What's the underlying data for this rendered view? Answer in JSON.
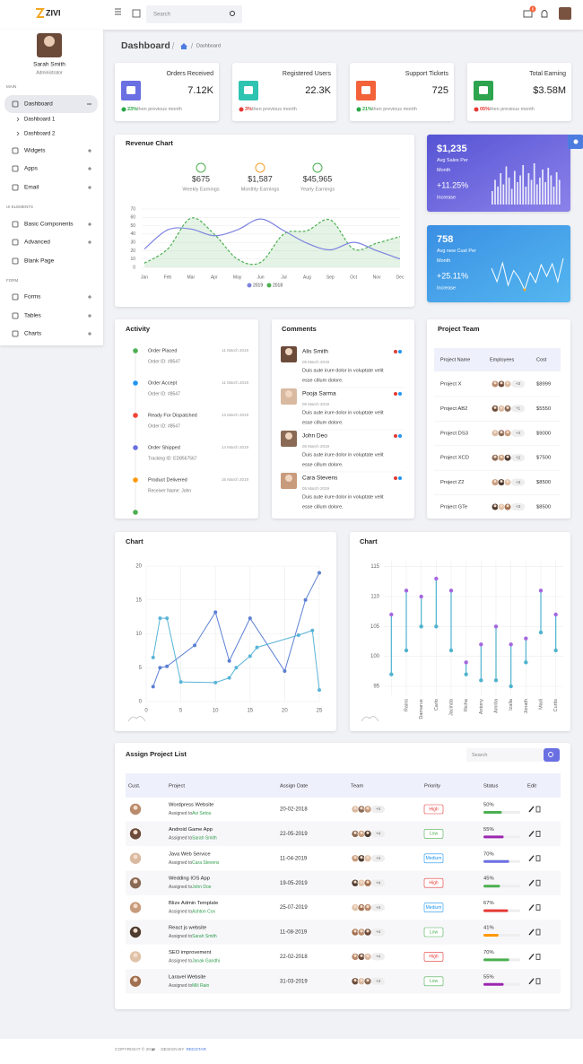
{
  "header": {
    "brand": "ZIVI",
    "search_placeholder": "Search",
    "mail_badge": "6"
  },
  "sidebar": {
    "user_name": "Sarah Smith",
    "user_role": "Administrator",
    "sections": [
      {
        "label": "MAIN",
        "items": [
          {
            "label": "Dashboard",
            "children": [
              "Dashboard 1",
              "Dashboard 2"
            ]
          },
          {
            "label": "Widgets"
          },
          {
            "label": "Apps"
          },
          {
            "label": "Email"
          }
        ]
      },
      {
        "label": "UI ELEMENTS",
        "items": [
          {
            "label": "Basic Components"
          },
          {
            "label": "Advanced"
          },
          {
            "label": "Blank Page"
          }
        ]
      },
      {
        "label": "FORM",
        "items": [
          {
            "label": "Forms"
          },
          {
            "label": "Tables"
          },
          {
            "label": "Charts"
          }
        ]
      }
    ]
  },
  "page_title": "Dashboard",
  "breadcrumb": [
    "Dashboard"
  ],
  "stats": [
    {
      "title": "Orders Received",
      "value": "7.12K",
      "change": "23%",
      "note": "then previous month",
      "trend_color": "#28a745",
      "color": "#6a6fe2"
    },
    {
      "title": "Registered Users",
      "value": "22.3K",
      "change": "3%",
      "note": "then previous month",
      "trend_color": "#e53935",
      "color": "#2fc3b2"
    },
    {
      "title": "Support Tickets",
      "value": "725",
      "change": "21%",
      "note": "then previous month",
      "trend_color": "#28a745",
      "color": "#f4623a"
    },
    {
      "title": "Total Earning",
      "value": "$3.58M",
      "change": "05%",
      "note": "then previous month",
      "trend_color": "#e53935",
      "color": "#2ea44f"
    }
  ],
  "revenue_chart": {
    "type": "line",
    "title": "Revenue Chart",
    "summary": [
      {
        "value": "$675",
        "label": "Weekly Earnings",
        "color": "#4caf50"
      },
      {
        "value": "$1,587",
        "label": "Monthly Earnings",
        "color": "#f0a030"
      },
      {
        "value": "$45,965",
        "label": "Yearly Earnings",
        "color": "#4caf50"
      }
    ],
    "categories": [
      "Jan",
      "Feb",
      "Mar",
      "Apr",
      "May",
      "Jun",
      "Jul",
      "Aug",
      "Sep",
      "Oct",
      "Nov",
      "Dec"
    ],
    "series": [
      {
        "name": "2019",
        "color": "#7c83e0",
        "values": [
          22,
          45,
          46,
          38,
          45,
          58,
          44,
          29,
          21,
          30,
          20,
          10
        ]
      },
      {
        "name": "2018",
        "color": "#4caf50",
        "dashed": true,
        "fill": true,
        "values": [
          5,
          22,
          59,
          40,
          10,
          6,
          40,
          44,
          57,
          22,
          29,
          37
        ]
      }
    ],
    "ylim": [
      0,
      70
    ],
    "yticks": [
      0,
      10,
      20,
      30,
      40,
      50,
      60,
      70
    ],
    "grid": true
  },
  "sales_cards": [
    {
      "value": "$1,235",
      "label": "Avg Sales Per Month",
      "change": "+11.25%",
      "change_note": "Increase",
      "spark": {
        "type": "bar",
        "color": "#ffffff",
        "ylim": [
          0,
          100
        ],
        "values": [
          30,
          55,
          40,
          70,
          45,
          85,
          60,
          35,
          75,
          50,
          65,
          88,
          40,
          70,
          55,
          92,
          45,
          60,
          78,
          50,
          82,
          65,
          40,
          72,
          55
        ]
      }
    },
    {
      "value": "758",
      "label": "Avg new Cust Per Month",
      "change": "+25.11%",
      "change_note": "Increase",
      "spark": {
        "type": "line",
        "color": "#ffffff",
        "ylim": [
          0,
          100
        ],
        "values": [
          60,
          30,
          72,
          22,
          55,
          38,
          12,
          50,
          28,
          68,
          42,
          70,
          30,
          82
        ]
      }
    }
  ],
  "activity": {
    "title": "Activity",
    "items": [
      {
        "title": "Order Placed",
        "detail": "Order ID: #8547",
        "date": "11 March 2019",
        "color": "#4caf50"
      },
      {
        "title": "Order Accept",
        "detail": "Order ID: #8547",
        "date": "11 March 2019",
        "color": "#2196f3"
      },
      {
        "title": "Ready For Dispatched",
        "detail": "Order ID: #8547",
        "date": "13 March 2019",
        "color": "#f44336"
      },
      {
        "title": "Order Shipped",
        "detail": "Tracking ID: ED8567567",
        "date": "14 March 2019",
        "color": "#6a6fe2"
      },
      {
        "title": "Product Delivered",
        "detail": "Receiver Name: John",
        "date": "16 March 2019",
        "color": "#ff9800"
      }
    ]
  },
  "comments": {
    "title": "Comments",
    "items": [
      {
        "name": "Alis Smith",
        "date": "05 March 2019",
        "text": [
          "Duis aute irure dolor in voluptate velit",
          "esse cillum dolore."
        ]
      },
      {
        "name": "Pooja Sarma",
        "date": "05 March 2019",
        "text": [
          "Duis aute irure dolor in voluptate velit",
          "esse cillum dolore."
        ]
      },
      {
        "name": "John Deo",
        "date": "05 March 2019",
        "text": [
          "Duis aute irure dolor in voluptate velit",
          "esse cillum dolore."
        ]
      },
      {
        "name": "Cara Stevens",
        "date": "05 March 2019",
        "text": [
          "Duis aute irure dolor in voluptate velit",
          "esse cillum dolore."
        ]
      }
    ]
  },
  "project_team": {
    "title": "Project Team",
    "columns": [
      "Project Name",
      "Employees",
      "Cost"
    ],
    "rows": [
      {
        "name": "Project X",
        "extra": "+3",
        "cost": "$8999"
      },
      {
        "name": "Project AB2",
        "extra": "+1",
        "cost": "$5550"
      },
      {
        "name": "Project DS3",
        "extra": "+4",
        "cost": "$9000"
      },
      {
        "name": "Project XCD",
        "extra": "+2",
        "cost": "$7500"
      },
      {
        "name": "Project Z2",
        "extra": "+3",
        "cost": "$8500"
      },
      {
        "name": "Project GTe",
        "extra": "+3",
        "cost": "$8500"
      }
    ]
  },
  "chart_left": {
    "type": "scatter",
    "title": "Chart",
    "series": [
      {
        "color": "#5b7fd4",
        "x": [
          1,
          2,
          3,
          7,
          10,
          12,
          15,
          20,
          23,
          25
        ],
        "values": [
          2.2,
          5,
          5.2,
          8.3,
          13.2,
          6,
          12.3,
          4.5,
          15,
          19
        ]
      },
      {
        "color": "#5ab4d8",
        "x": [
          1,
          2,
          3,
          5,
          10,
          12,
          13,
          15,
          16,
          22,
          24,
          25
        ],
        "values": [
          6.5,
          12.3,
          12.3,
          2.9,
          2.8,
          3.5,
          5,
          6.7,
          8,
          9.8,
          10.5,
          1.7
        ]
      }
    ],
    "xlim": [
      0,
      25
    ],
    "xticks": [
      0,
      5,
      10,
      15,
      20,
      25
    ],
    "ylim": [
      0,
      20
    ],
    "yticks": [
      0,
      5,
      10,
      15,
      20
    ],
    "grid": true
  },
  "chart_right": {
    "type": "lollipop",
    "title": "Chart",
    "categories": [
      null,
      "Rains",
      "Damarue",
      "Carlo",
      "Jacinda",
      "Richa",
      "Antony",
      "Amrita",
      "Izalla",
      "Jonath",
      "Madi",
      "Curtis"
    ],
    "low": [
      97,
      101,
      105,
      105,
      101,
      97,
      96,
      96,
      95,
      99,
      104,
      101
    ],
    "high": [
      107,
      111,
      110,
      113,
      111,
      99,
      102,
      105,
      102,
      103,
      111,
      107
    ],
    "low_color": "#4fb3cf",
    "high_color": "#a567e0",
    "ylim": [
      93.5,
      116
    ],
    "yticks": [
      95,
      100,
      105,
      110,
      115
    ],
    "grid": true
  },
  "project_list": {
    "title": "Assign Project List",
    "search_placeholder": "Search",
    "assigned_prefix": "Assigned to",
    "columns": [
      "Cust.",
      "Project",
      "Assign Date",
      "Team",
      "Priority",
      "Status",
      "Edit"
    ],
    "status_scale": [
      0,
      100
    ],
    "rows": [
      {
        "project": "Wordpress Website",
        "assignee": "Avi Setou",
        "date": "20-02-2018",
        "team_extra": "+4",
        "priority": "High",
        "priority_color": "#e53935",
        "status": 50,
        "status_label": "50%",
        "status_color": "#4caf50"
      },
      {
        "project": "Android Game App",
        "assignee": "Sarah Smith",
        "date": "22-05-2019",
        "team_extra": "+4",
        "priority": "Low",
        "priority_color": "#4caf50",
        "status": 55,
        "status_label": "55%",
        "status_color": "#9c27b0"
      },
      {
        "project": "Java Web Service",
        "assignee": "Cara Stevens",
        "date": "11-04-2019",
        "team_extra": "+4",
        "priority": "Medium",
        "priority_color": "#2196f3",
        "status": 70,
        "status_label": "70%",
        "status_color": "#6a6fe2"
      },
      {
        "project": "Wedding IOS App",
        "assignee": "John Doe",
        "date": "19-05-2019",
        "team_extra": "+4",
        "priority": "High",
        "priority_color": "#e53935",
        "status": 45,
        "status_label": "45%",
        "status_color": "#4caf50"
      },
      {
        "project": "Blize Admin Template",
        "assignee": "Ashton Cox",
        "date": "25-07-2019",
        "team_extra": "+4",
        "priority": "Medium",
        "priority_color": "#2196f3",
        "status": 67,
        "status_label": "67%",
        "status_color": "#e53935"
      },
      {
        "project": "React js website",
        "assignee": "Sarah Smith",
        "date": "11-08-2019",
        "team_extra": "+4",
        "priority": "Low",
        "priority_color": "#4caf50",
        "status": 41,
        "status_label": "41%",
        "status_color": "#ff9800"
      },
      {
        "project": "SEO improvement",
        "assignee": "Janak Gandhi",
        "date": "22-02-2018",
        "team_extra": "+4",
        "priority": "High",
        "priority_color": "#e53935",
        "status": 70,
        "status_label": "70%",
        "status_color": "#4caf50"
      },
      {
        "project": "Laravel Website",
        "assignee": "Mili Rain",
        "date": "31-03-2019",
        "team_extra": "+4",
        "priority": "Low",
        "priority_color": "#4caf50",
        "status": 55,
        "status_label": "55%",
        "status_color": "#9c27b0"
      }
    ]
  },
  "footer": {
    "copyright": "COPYRIGHT © 2019",
    "design_by": "DESIGN BY",
    "designer": "REDSTAR"
  }
}
